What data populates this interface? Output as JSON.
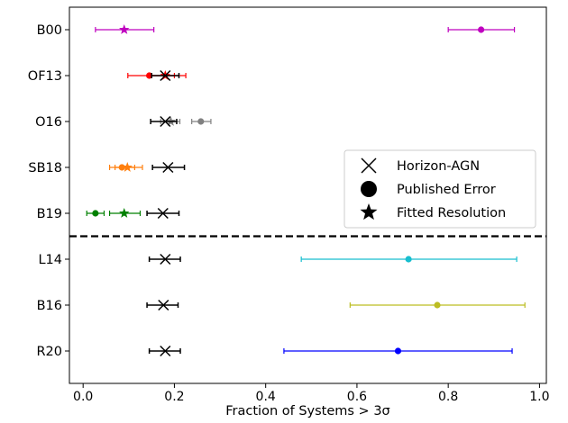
{
  "chart_data": {
    "type": "scatter",
    "xlabel": "Fraction of Systems $> 3\\sigma$",
    "xlabel_display": "Fraction of Systems  > 3σ",
    "xlim": [
      -0.03,
      1.015
    ],
    "x_ticks": [
      "0.0",
      "0.2",
      "0.4",
      "0.6",
      "0.8",
      "1.0"
    ],
    "x_tick_values": [
      0.0,
      0.2,
      0.4,
      0.6,
      0.8,
      1.0
    ],
    "categories": [
      "B00",
      "OF13",
      "O16",
      "SB18",
      "B19",
      "L14",
      "B16",
      "R20"
    ],
    "divider_after_category": "B19",
    "divider_style": "dashed",
    "legend": {
      "placement": "center-right",
      "entries": [
        {
          "label": "Horizon-AGN",
          "marker": "x",
          "color": "#000000"
        },
        {
          "label": "Published Error",
          "marker": "circle",
          "color": "#000000"
        },
        {
          "label": "Fitted Resolution",
          "marker": "star",
          "color": "#000000"
        }
      ]
    },
    "series": [
      {
        "category": "B00",
        "marker": "star",
        "color": "#bf00bf",
        "x": 0.09,
        "xerr": [
          0.027,
          0.155
        ]
      },
      {
        "category": "B00",
        "marker": "circle",
        "color": "#bf00bf",
        "x": 0.872,
        "xerr": [
          0.8,
          0.945
        ]
      },
      {
        "category": "OF13",
        "marker": "circle",
        "color": "#ff0000",
        "x": 0.145,
        "xerr": [
          0.098,
          0.2
        ]
      },
      {
        "category": "OF13",
        "marker": "star",
        "color": "#ff0000",
        "x": 0.18,
        "xerr": [
          0.145,
          0.225
        ]
      },
      {
        "category": "OF13",
        "marker": "x",
        "color": "#000000",
        "x": 0.18,
        "xerr": [
          0.15,
          0.21
        ]
      },
      {
        "category": "O16",
        "marker": "circle",
        "color": "#808080",
        "x": 0.258,
        "xerr": [
          0.238,
          0.28
        ]
      },
      {
        "category": "O16",
        "marker": "star",
        "color": "#808080",
        "x": 0.192,
        "xerr": [
          0.17,
          0.212
        ]
      },
      {
        "category": "O16",
        "marker": "x",
        "color": "#000000",
        "x": 0.18,
        "xerr": [
          0.148,
          0.205
        ]
      },
      {
        "category": "SB18",
        "marker": "circle",
        "color": "#ff7f0e",
        "x": 0.085,
        "xerr": [
          0.058,
          0.113
        ]
      },
      {
        "category": "SB18",
        "marker": "star",
        "color": "#ff7f0e",
        "x": 0.097,
        "xerr": [
          0.07,
          0.13
        ]
      },
      {
        "category": "SB18",
        "marker": "x",
        "color": "#000000",
        "x": 0.186,
        "xerr": [
          0.152,
          0.222
        ]
      },
      {
        "category": "B19",
        "marker": "circle",
        "color": "#008000",
        "x": 0.027,
        "xerr": [
          0.008,
          0.046
        ]
      },
      {
        "category": "B19",
        "marker": "star",
        "color": "#008000",
        "x": 0.09,
        "xerr": [
          0.058,
          0.125
        ]
      },
      {
        "category": "B19",
        "marker": "x",
        "color": "#000000",
        "x": 0.175,
        "xerr": [
          0.14,
          0.21
        ]
      },
      {
        "category": "L14",
        "marker": "circle",
        "color": "#17becf",
        "x": 0.713,
        "xerr": [
          0.478,
          0.95
        ]
      },
      {
        "category": "L14",
        "marker": "x",
        "color": "#000000",
        "x": 0.18,
        "xerr": [
          0.145,
          0.213
        ]
      },
      {
        "category": "B16",
        "marker": "circle",
        "color": "#bcbd22",
        "x": 0.776,
        "xerr": [
          0.585,
          0.968
        ]
      },
      {
        "category": "B16",
        "marker": "x",
        "color": "#000000",
        "x": 0.176,
        "xerr": [
          0.14,
          0.208
        ]
      },
      {
        "category": "R20",
        "marker": "circle",
        "color": "#0000ff",
        "x": 0.69,
        "xerr": [
          0.44,
          0.94
        ]
      },
      {
        "category": "R20",
        "marker": "x",
        "color": "#000000",
        "x": 0.18,
        "xerr": [
          0.145,
          0.213
        ]
      }
    ]
  }
}
